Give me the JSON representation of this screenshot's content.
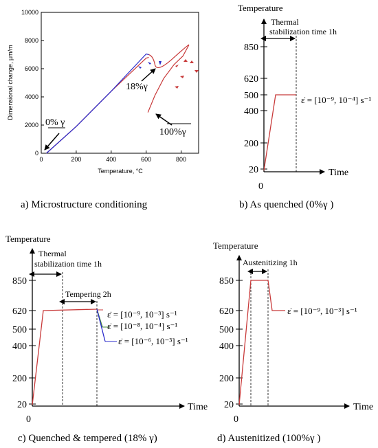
{
  "panel_a": {
    "caption": "a) Microstructure conditioning",
    "ylabel": "Dimensional change, µm/m",
    "xlabel": "Temperature, °C",
    "yticks": [
      "0",
      "2000",
      "4000",
      "6000",
      "8000",
      "10000"
    ],
    "xticks": [
      "0",
      "200",
      "400",
      "600",
      "800"
    ],
    "labels": {
      "zero": "0% γ",
      "eighteen": "18%γ",
      "hundred": "100%γ"
    },
    "colors": {
      "zero": "#c83a3a",
      "eighteen": "#2a2acb",
      "hundred": "#c83a3a"
    }
  },
  "panel_b": {
    "caption": "b) As quenched (0%γ )",
    "ylabel": "Temperature",
    "xlabel": "Time",
    "origin": "0",
    "yticks": [
      "850",
      "620",
      "500",
      "400",
      "200",
      "20"
    ],
    "stab_label_1": "Thermal",
    "stab_label_2": "stabilization time 1h",
    "rate": "ε̇ = [10⁻⁹, 10⁻⁴] s⁻¹"
  },
  "panel_c": {
    "caption": "c) Quenched & tempered (18% γ)",
    "ylabel": "Temperature",
    "xlabel": "Time",
    "origin": "0",
    "yticks": [
      "850",
      "620",
      "500",
      "400",
      "200",
      "20"
    ],
    "stab_label_1": "Thermal",
    "stab_label_2": "stabilization time 1h",
    "temper_label": "Tempering 2h",
    "rates": [
      "ε̇ = [10⁻⁹, 10⁻³] s⁻¹",
      "ε̇ = [10⁻⁸, 10⁻⁴] s⁻¹",
      "ε̇ = [10⁻⁶, 10⁻³] s⁻¹"
    ]
  },
  "panel_d": {
    "caption": "d) Austenitized (100%γ )",
    "ylabel": "Temperature",
    "xlabel": "Time",
    "origin": "0",
    "yticks": [
      "850",
      "620",
      "500",
      "400",
      "200",
      "20"
    ],
    "aust_label": "Austenitizing 1h",
    "rate": "ε̇ = [10⁻⁹, 10⁻³] s⁻¹"
  },
  "chart_data": {
    "type": "line",
    "xlabel": "Temperature, °C",
    "ylabel": "Dimensional change, µm/m",
    "xlim": [
      0,
      900
    ],
    "ylim": [
      0,
      10000
    ],
    "series": [
      {
        "name": "0% γ",
        "x": [
          30,
          200,
          400,
          600,
          615
        ],
        "y": [
          0,
          1900,
          4400,
          6750,
          6800
        ]
      },
      {
        "name": "18%γ",
        "x": [
          30,
          200,
          400,
          600,
          615
        ],
        "y": [
          0,
          1900,
          4400,
          7050,
          7000
        ]
      },
      {
        "name": "100%γ",
        "x": [
          610,
          650,
          700,
          760,
          810,
          845
        ],
        "y": [
          2900,
          4100,
          5300,
          6300,
          6900,
          7700
        ]
      }
    ]
  }
}
